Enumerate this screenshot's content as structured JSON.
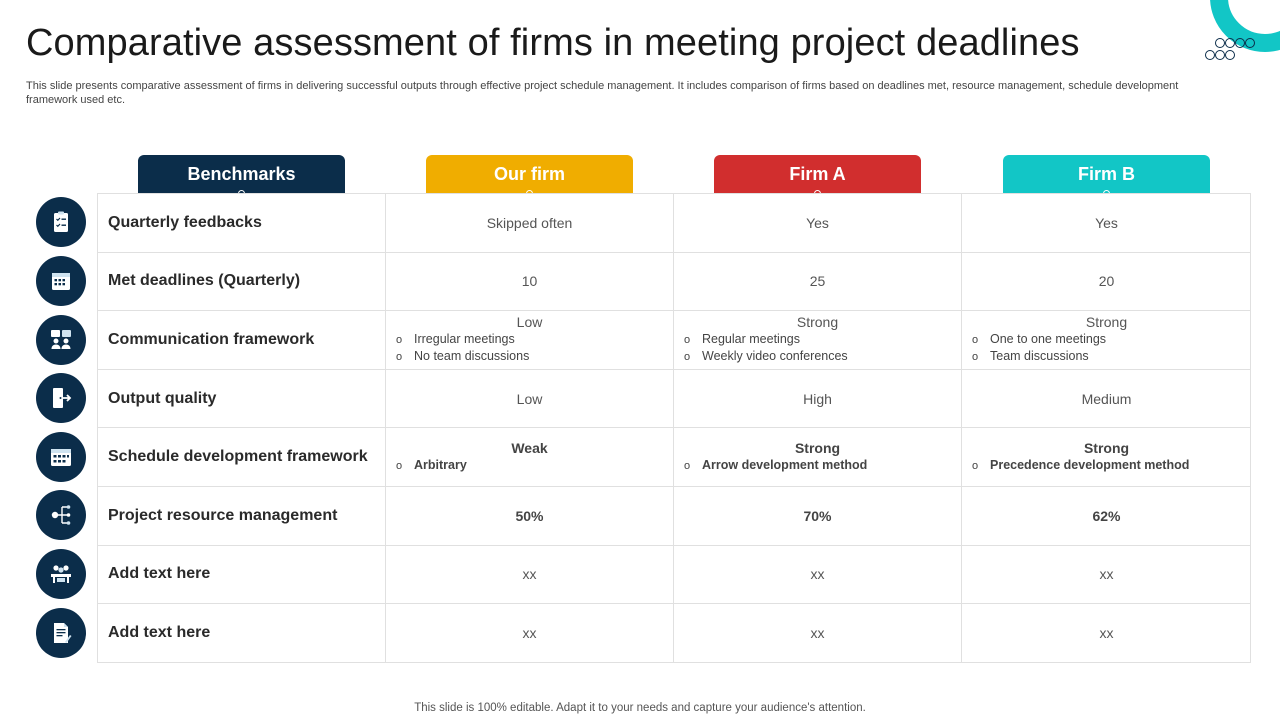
{
  "title": "Comparative assessment of firms in meeting project deadlines",
  "subtitle": "This slide presents comparative assessment of firms in delivering successful outputs through effective project schedule management. It includes comparison of firms based on deadlines met, resource management, schedule development framework used etc.",
  "footer": "This slide is 100% editable. Adapt it to your needs and capture your audience's attention.",
  "columns": [
    {
      "label": "Benchmarks",
      "color": "#0b2d4a"
    },
    {
      "label": "Our firm",
      "color": "#f0ad00"
    },
    {
      "label": "Firm A",
      "color": "#d12e2e"
    },
    {
      "label": "Firm B",
      "color": "#12c6c6"
    }
  ],
  "rows": [
    {
      "benchmark": "Quarterly feedbacks",
      "icon": "clipboard-checklist-icon",
      "our": {
        "text": "Skipped often"
      },
      "a": {
        "text": "Yes"
      },
      "b": {
        "text": "Yes"
      }
    },
    {
      "benchmark": "Met deadlines (Quarterly)",
      "icon": "calendar-icon",
      "our": {
        "text": "10"
      },
      "a": {
        "text": "25"
      },
      "b": {
        "text": "20"
      }
    },
    {
      "benchmark": "Communication framework",
      "icon": "team-meeting-icon",
      "our": {
        "text": "Low",
        "bullets": [
          "Irregular meetings",
          "No team discussions"
        ]
      },
      "a": {
        "text": "Strong",
        "bullets": [
          "Regular meetings",
          "Weekly video conferences"
        ]
      },
      "b": {
        "text": "Strong",
        "bullets": [
          "One to one meetings",
          "Team discussions"
        ]
      }
    },
    {
      "benchmark": "Output quality",
      "icon": "exit-door-icon",
      "our": {
        "text": "Low"
      },
      "a": {
        "text": "High"
      },
      "b": {
        "text": "Medium"
      }
    },
    {
      "benchmark": "Schedule development framework",
      "icon": "schedule-calendar-icon",
      "our": {
        "text": "Weak",
        "bullets": [
          "Arbitrary"
        ]
      },
      "a": {
        "text": "Strong",
        "bullets": [
          "Arrow development method"
        ]
      },
      "b": {
        "text": "Strong",
        "bullets": [
          "Precedence development method"
        ]
      }
    },
    {
      "benchmark": "Project resource management",
      "icon": "resource-network-icon",
      "our": {
        "text": "50%"
      },
      "a": {
        "text": "70%"
      },
      "b": {
        "text": "62%"
      }
    },
    {
      "benchmark": "Add text here",
      "icon": "group-desk-icon",
      "our": {
        "text": "xx"
      },
      "a": {
        "text": "xx"
      },
      "b": {
        "text": "xx"
      }
    },
    {
      "benchmark": "Add text here",
      "icon": "document-edit-icon",
      "our": {
        "text": "xx"
      },
      "a": {
        "text": "xx"
      },
      "b": {
        "text": "xx"
      }
    }
  ]
}
